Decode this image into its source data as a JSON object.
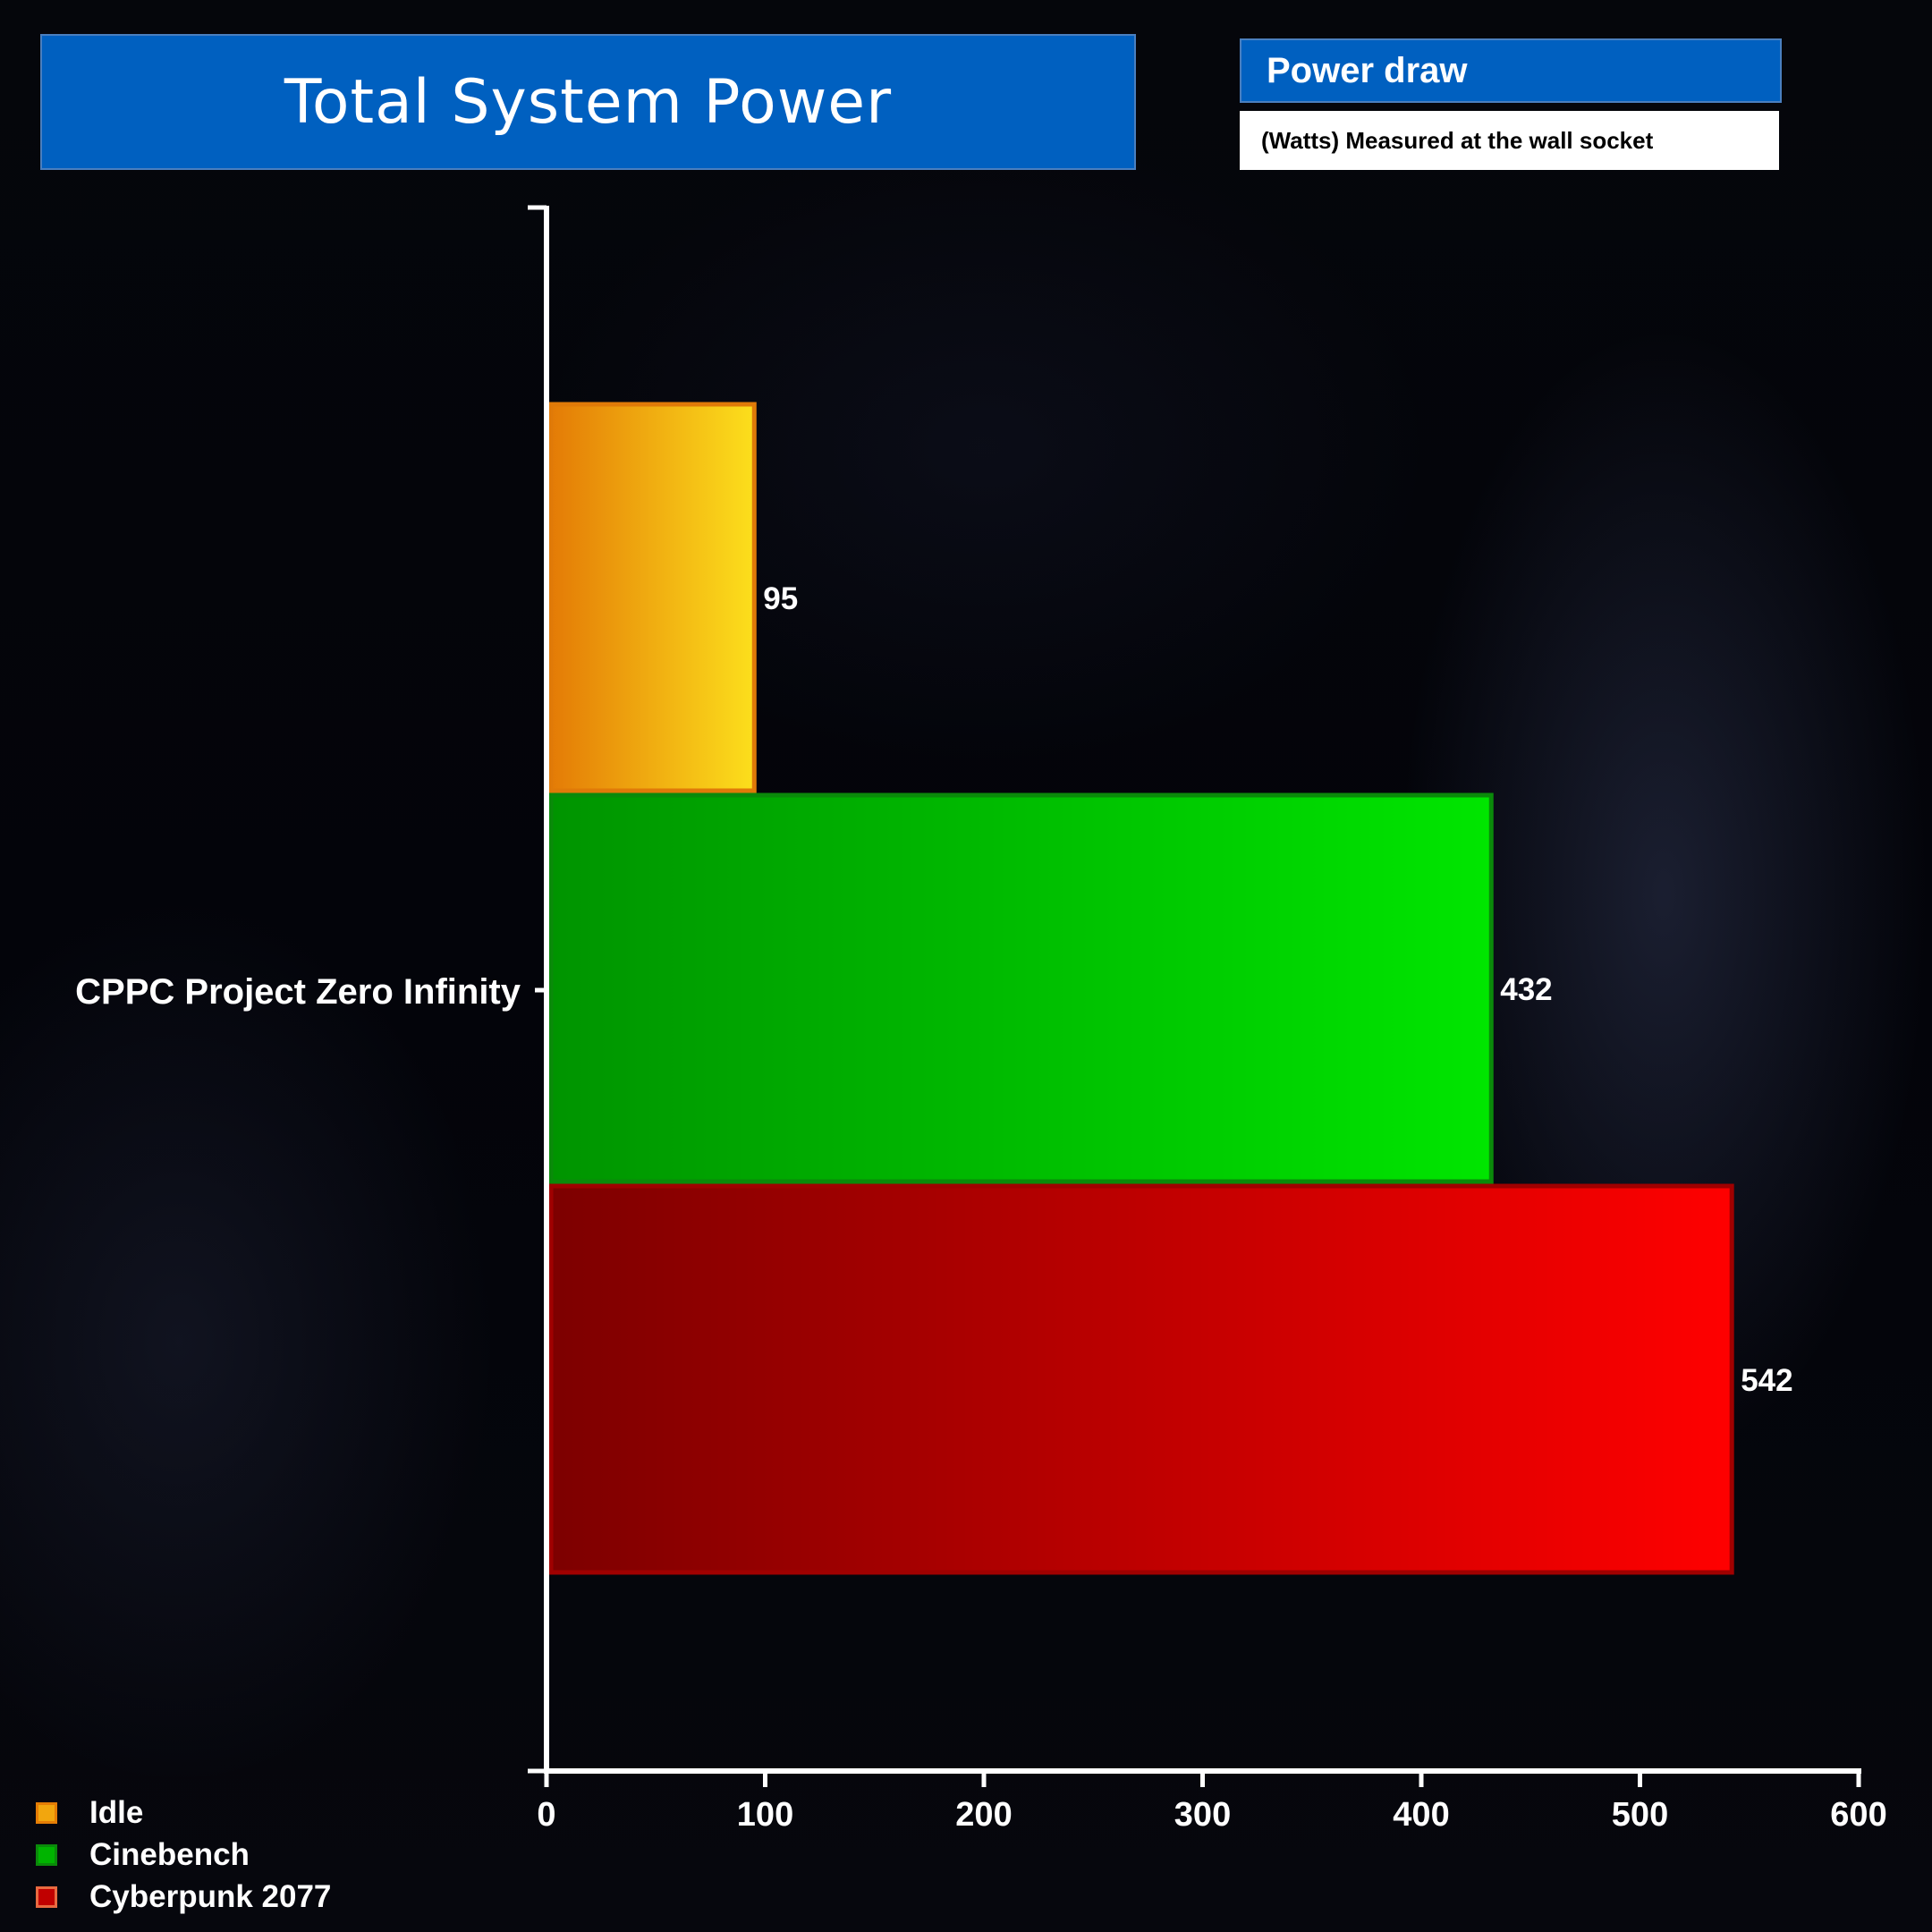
{
  "header": {
    "title": "Total System Power",
    "subtitle": "Power draw",
    "description": "(Watts) Measured at the wall socket"
  },
  "colors": {
    "title_bg": "#0060c0",
    "idle": "#f7b516",
    "cinebench": "#00c000",
    "cyberpunk": "#d00000"
  },
  "chart_data": {
    "type": "bar",
    "orientation": "horizontal",
    "categories": [
      "CPPC Project Zero Infinity"
    ],
    "series": [
      {
        "name": "Idle",
        "values": [
          95
        ]
      },
      {
        "name": "Cinebench",
        "values": [
          432
        ]
      },
      {
        "name": "Cyberpunk 2077",
        "values": [
          542
        ]
      }
    ],
    "data_labels": [
      "95",
      "432",
      "542"
    ],
    "x_ticks": [
      "0",
      "100",
      "200",
      "300",
      "400",
      "500",
      "600"
    ],
    "xlim": [
      0,
      600
    ],
    "legend_position": "bottom-left",
    "grid": false
  },
  "legend": [
    {
      "label": "Idle"
    },
    {
      "label": "Cinebench"
    },
    {
      "label": "Cyberpunk 2077"
    }
  ]
}
